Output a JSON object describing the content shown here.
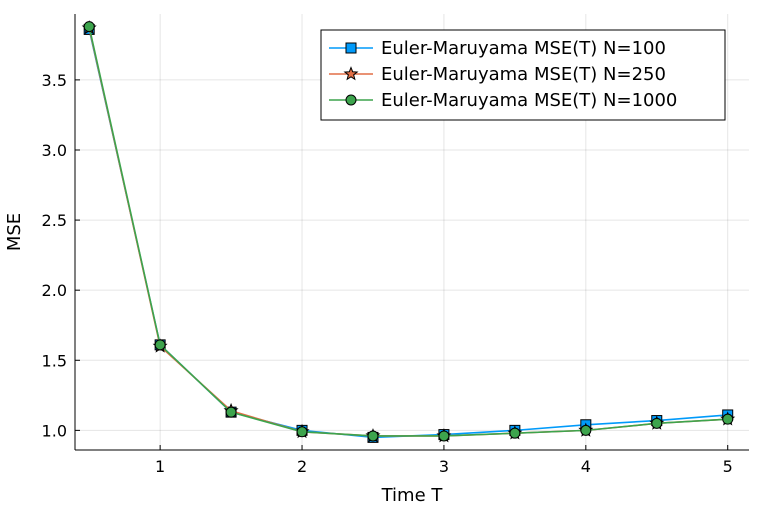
{
  "chart_data": {
    "type": "line",
    "xlabel": "Time T",
    "ylabel": "MSE",
    "xlim": [
      0.4,
      5.15
    ],
    "ylim": [
      0.86,
      3.97
    ],
    "xticks": [
      1,
      2,
      3,
      4,
      5
    ],
    "xtick_labels": [
      "1",
      "2",
      "3",
      "4",
      "5"
    ],
    "yticks": [
      1.0,
      1.5,
      2.0,
      2.5,
      3.0,
      3.5
    ],
    "ytick_labels": [
      "1.0",
      "1.5",
      "2.0",
      "2.5",
      "3.0",
      "3.5"
    ],
    "grid": true,
    "legend_position": "top-right",
    "x": [
      0.5,
      1.0,
      1.5,
      2.0,
      2.5,
      3.0,
      3.5,
      4.0,
      4.5,
      5.0
    ],
    "series": [
      {
        "name": "Euler-Maruyama MSE(T) N=100",
        "color": "#009AFA",
        "marker": "square",
        "values": [
          3.86,
          1.61,
          1.13,
          1.0,
          0.95,
          0.97,
          1.0,
          1.04,
          1.07,
          1.11
        ]
      },
      {
        "name": "Euler-Maruyama MSE(T) N=250",
        "color": "#E26F46",
        "marker": "star",
        "values": [
          3.87,
          1.6,
          1.14,
          0.99,
          0.96,
          0.96,
          0.98,
          1.0,
          1.05,
          1.08
        ]
      },
      {
        "name": "Euler-Maruyama MSE(T) N=1000",
        "color": "#3DA44D",
        "marker": "circle",
        "values": [
          3.88,
          1.61,
          1.13,
          0.99,
          0.96,
          0.96,
          0.98,
          1.0,
          1.05,
          1.08
        ]
      }
    ]
  }
}
